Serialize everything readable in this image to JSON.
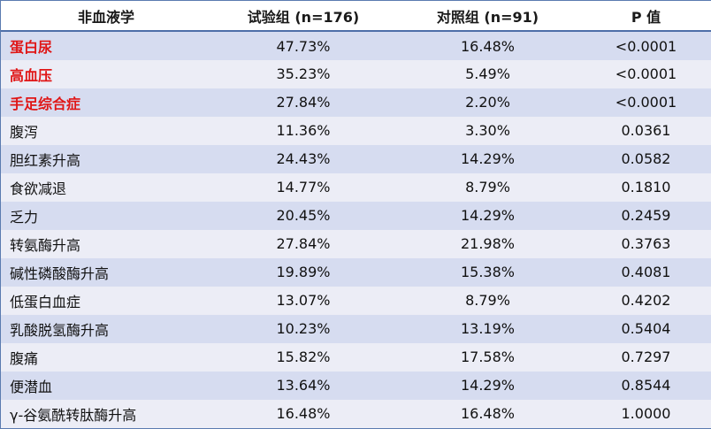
{
  "table": {
    "headers": [
      "非血液学",
      "试验组 (n=176)",
      "对照组 (n=91)",
      "P 值"
    ],
    "highlight_color": "#e01616",
    "rows": [
      {
        "name": "蛋白尿",
        "trial": "47.73%",
        "control": "16.48%",
        "p": "<0.0001",
        "highlight": true
      },
      {
        "name": "高血压",
        "trial": "35.23%",
        "control": "5.49%",
        "p": "<0.0001",
        "highlight": true
      },
      {
        "name": "手足综合症",
        "trial": "27.84%",
        "control": "2.20%",
        "p": "<0.0001",
        "highlight": true
      },
      {
        "name": "腹泻",
        "trial": "11.36%",
        "control": "3.30%",
        "p": "0.0361",
        "highlight": false
      },
      {
        "name": "胆红素升高",
        "trial": "24.43%",
        "control": "14.29%",
        "p": "0.0582",
        "highlight": false
      },
      {
        "name": "食欲减退",
        "trial": "14.77%",
        "control": "8.79%",
        "p": "0.1810",
        "highlight": false
      },
      {
        "name": "乏力",
        "trial": "20.45%",
        "control": "14.29%",
        "p": "0.2459",
        "highlight": false
      },
      {
        "name": "转氨酶升高",
        "trial": "27.84%",
        "control": "21.98%",
        "p": "0.3763",
        "highlight": false
      },
      {
        "name": "碱性磷酸酶升高",
        "trial": "19.89%",
        "control": "15.38%",
        "p": "0.4081",
        "highlight": false
      },
      {
        "name": "低蛋白血症",
        "trial": "13.07%",
        "control": "8.79%",
        "p": "0.4202",
        "highlight": false
      },
      {
        "name": "乳酸脱氢酶升高",
        "trial": "10.23%",
        "control": "13.19%",
        "p": "0.5404",
        "highlight": false
      },
      {
        "name": "腹痛",
        "trial": "15.82%",
        "control": "17.58%",
        "p": "0.7297",
        "highlight": false
      },
      {
        "name": "便潜血",
        "trial": "13.64%",
        "control": "14.29%",
        "p": "0.8544",
        "highlight": false
      },
      {
        "name": "γ-谷氨酰转肽酶升高",
        "trial": "16.48%",
        "control": "16.48%",
        "p": "1.0000",
        "highlight": false
      }
    ]
  }
}
